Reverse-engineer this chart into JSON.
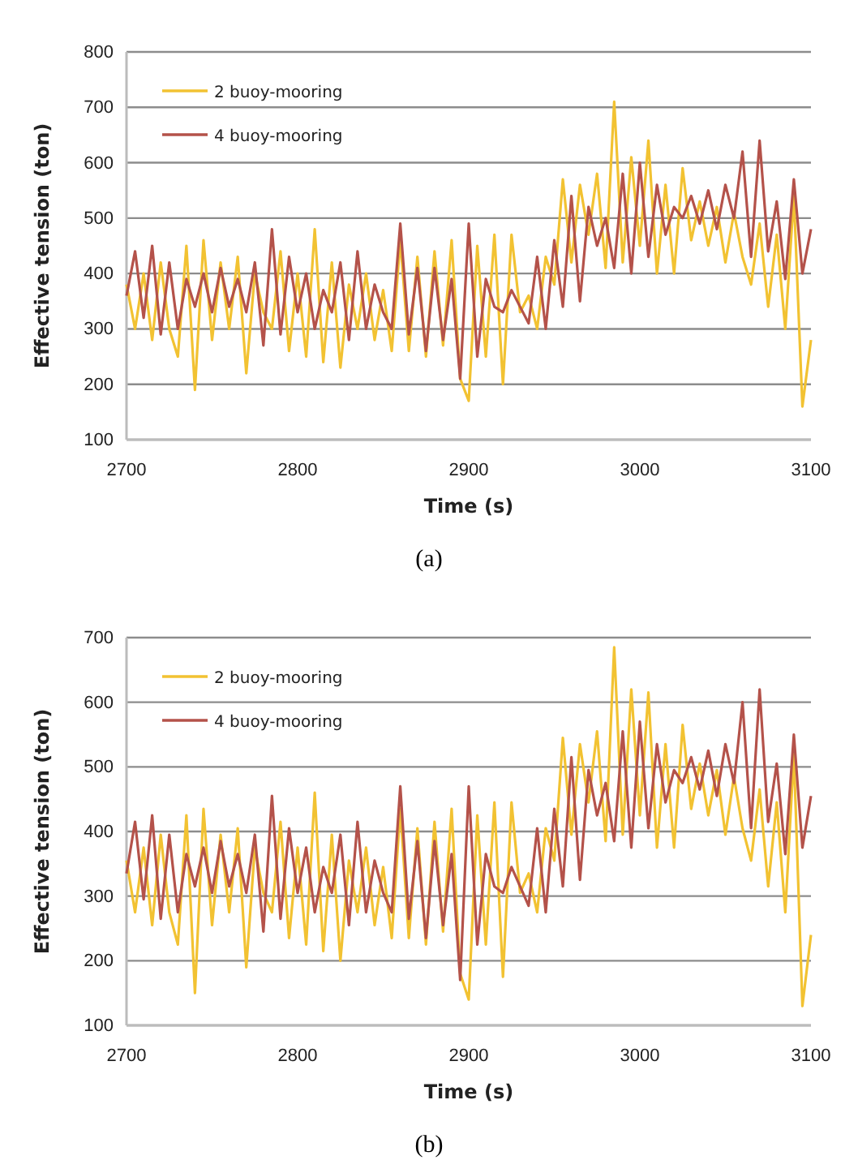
{
  "chart_data": [
    {
      "type": "line",
      "xlabel": "Time (s)",
      "ylabel": "Effective tension (ton)",
      "xlim": [
        2700,
        3100
      ],
      "xticks": [
        2700,
        2800,
        2900,
        3000,
        3100
      ],
      "ylim": [
        100,
        800
      ],
      "yticks": [
        100,
        200,
        300,
        400,
        500,
        600,
        700,
        800
      ],
      "grid": "y",
      "legend": "top left",
      "annotations": [
        "(a)"
      ],
      "x": [
        2700,
        2705,
        2710,
        2715,
        2720,
        2725,
        2730,
        2735,
        2740,
        2745,
        2750,
        2755,
        2760,
        2765,
        2770,
        2775,
        2780,
        2785,
        2790,
        2795,
        2800,
        2805,
        2810,
        2815,
        2820,
        2825,
        2830,
        2835,
        2840,
        2845,
        2850,
        2855,
        2860,
        2865,
        2870,
        2875,
        2880,
        2885,
        2890,
        2895,
        2900,
        2905,
        2910,
        2915,
        2920,
        2925,
        2930,
        2935,
        2940,
        2945,
        2950,
        2955,
        2960,
        2965,
        2970,
        2975,
        2980,
        2985,
        2990,
        2995,
        3000,
        3005,
        3010,
        3015,
        3020,
        3025,
        3030,
        3035,
        3040,
        3045,
        3050,
        3055,
        3060,
        3065,
        3070,
        3075,
        3080,
        3085,
        3090,
        3095,
        3100
      ],
      "series": [
        {
          "name": "2 buoy-mooring",
          "color": "#f2c232",
          "values": [
            380,
            300,
            400,
            280,
            420,
            300,
            250,
            450,
            190,
            460,
            280,
            420,
            300,
            430,
            220,
            400,
            330,
            300,
            440,
            260,
            400,
            250,
            480,
            240,
            420,
            230,
            380,
            300,
            400,
            280,
            370,
            260,
            460,
            260,
            430,
            250,
            440,
            270,
            460,
            210,
            170,
            450,
            250,
            470,
            200,
            470,
            330,
            360,
            300,
            430,
            380,
            570,
            420,
            560,
            470,
            580,
            410,
            710,
            420,
            610,
            450,
            640,
            400,
            560,
            400,
            590,
            460,
            530,
            450,
            520,
            420,
            510,
            430,
            380,
            490,
            340,
            470,
            300,
            540,
            160,
            280
          ]
        },
        {
          "name": "4 buoy-mooring",
          "color": "#b4524a",
          "values": [
            360,
            440,
            320,
            450,
            290,
            420,
            300,
            390,
            340,
            400,
            330,
            410,
            340,
            390,
            330,
            420,
            270,
            480,
            290,
            430,
            330,
            400,
            300,
            370,
            330,
            420,
            280,
            440,
            300,
            380,
            330,
            300,
            490,
            290,
            410,
            260,
            410,
            280,
            390,
            210,
            490,
            250,
            390,
            340,
            330,
            370,
            340,
            310,
            430,
            300,
            460,
            340,
            540,
            350,
            520,
            450,
            500,
            410,
            580,
            400,
            600,
            430,
            560,
            470,
            520,
            500,
            540,
            490,
            550,
            480,
            560,
            500,
            620,
            430,
            640,
            440,
            530,
            390,
            570,
            400,
            480
          ]
        }
      ]
    },
    {
      "type": "line",
      "xlabel": "Time (s)",
      "ylabel": "Effective tension (ton)",
      "xlim": [
        2700,
        3100
      ],
      "xticks": [
        2700,
        2800,
        2900,
        3000,
        3100
      ],
      "ylim": [
        100,
        700
      ],
      "yticks": [
        100,
        200,
        300,
        400,
        500,
        600,
        700
      ],
      "grid": "y",
      "legend": "top left",
      "annotations": [
        "(b)"
      ],
      "x": [
        2700,
        2705,
        2710,
        2715,
        2720,
        2725,
        2730,
        2735,
        2740,
        2745,
        2750,
        2755,
        2760,
        2765,
        2770,
        2775,
        2780,
        2785,
        2790,
        2795,
        2800,
        2805,
        2810,
        2815,
        2820,
        2825,
        2830,
        2835,
        2840,
        2845,
        2850,
        2855,
        2860,
        2865,
        2870,
        2875,
        2880,
        2885,
        2890,
        2895,
        2900,
        2905,
        2910,
        2915,
        2920,
        2925,
        2930,
        2935,
        2940,
        2945,
        2950,
        2955,
        2960,
        2965,
        2970,
        2975,
        2980,
        2985,
        2990,
        2995,
        3000,
        3005,
        3010,
        3015,
        3020,
        3025,
        3030,
        3035,
        3040,
        3045,
        3050,
        3055,
        3060,
        3065,
        3070,
        3075,
        3080,
        3085,
        3090,
        3095,
        3100
      ],
      "series": [
        {
          "name": "2 buoy-mooring",
          "color": "#f2c232",
          "values": [
            355,
            275,
            375,
            255,
            395,
            275,
            225,
            425,
            150,
            435,
            255,
            395,
            275,
            405,
            190,
            375,
            305,
            275,
            415,
            235,
            375,
            225,
            460,
            215,
            395,
            200,
            355,
            275,
            375,
            255,
            345,
            235,
            435,
            235,
            405,
            225,
            415,
            245,
            435,
            180,
            140,
            425,
            225,
            445,
            175,
            445,
            305,
            335,
            275,
            405,
            355,
            545,
            395,
            535,
            445,
            555,
            385,
            685,
            395,
            620,
            425,
            615,
            375,
            535,
            375,
            565,
            435,
            505,
            425,
            495,
            395,
            485,
            405,
            355,
            465,
            315,
            445,
            275,
            520,
            130,
            240
          ]
        },
        {
          "name": "4 buoy-mooring",
          "color": "#b4524a",
          "values": [
            335,
            415,
            295,
            425,
            265,
            395,
            275,
            365,
            315,
            375,
            305,
            385,
            315,
            365,
            305,
            395,
            245,
            455,
            265,
            405,
            305,
            375,
            275,
            345,
            305,
            395,
            255,
            415,
            275,
            355,
            305,
            275,
            470,
            265,
            385,
            235,
            385,
            255,
            365,
            170,
            470,
            225,
            365,
            315,
            305,
            345,
            315,
            285,
            405,
            275,
            435,
            315,
            515,
            325,
            495,
            425,
            475,
            385,
            555,
            375,
            570,
            405,
            535,
            445,
            495,
            475,
            515,
            465,
            525,
            455,
            535,
            475,
            600,
            405,
            620,
            415,
            505,
            365,
            550,
            375,
            455
          ]
        }
      ]
    }
  ]
}
